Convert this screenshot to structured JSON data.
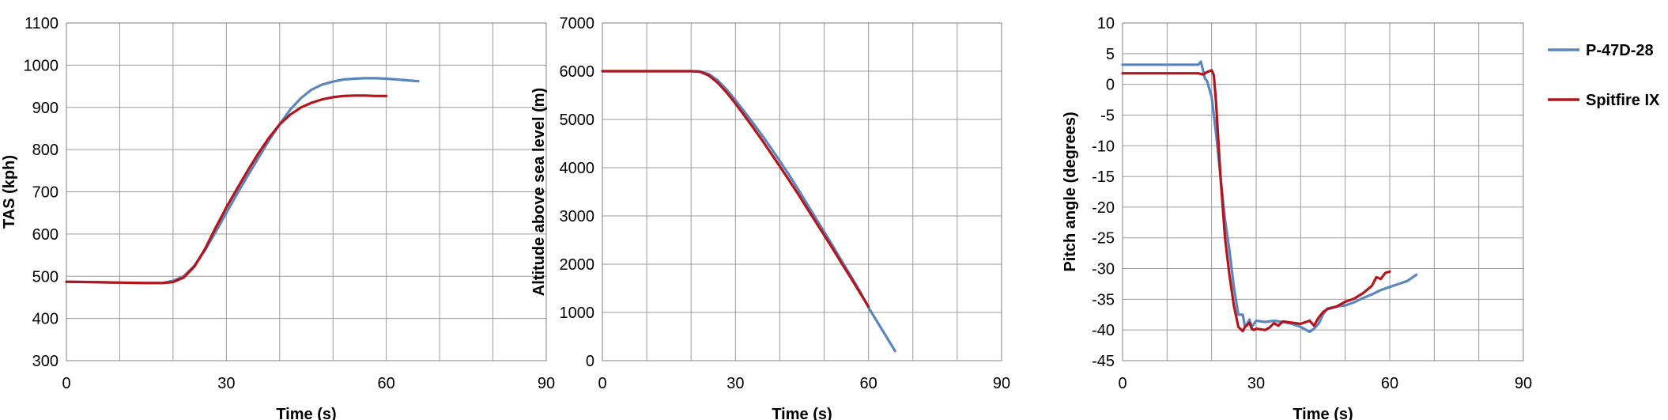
{
  "colors": {
    "p47": "#5b85bd",
    "spitfire": "#b3151c"
  },
  "legend": [
    {
      "label": "P-47D-28",
      "color": "#5b85bd"
    },
    {
      "label": "Spitfire IX",
      "color": "#b3151c"
    }
  ],
  "chart_data": [
    {
      "type": "line",
      "xlabel": "Time (s)",
      "ylabel": "TAS (kph)",
      "xlim": [
        0,
        90
      ],
      "ylim": [
        300,
        1100
      ],
      "xticks": [
        0,
        30,
        60,
        90
      ],
      "yticks": [
        300,
        400,
        500,
        600,
        700,
        800,
        900,
        1000,
        1100
      ],
      "xgrid_step": 10,
      "grid": true,
      "series": [
        {
          "name": "P-47D-28",
          "color": "#5b85bd",
          "x": [
            0,
            5,
            10,
            15,
            18,
            20,
            22,
            24,
            26,
            28,
            30,
            32,
            34,
            36,
            38,
            40,
            42,
            44,
            46,
            48,
            50,
            52,
            54,
            56,
            58,
            60,
            62,
            64,
            66
          ],
          "y": [
            487,
            486,
            485,
            484,
            484,
            489,
            500,
            525,
            562,
            605,
            650,
            695,
            738,
            780,
            822,
            860,
            895,
            922,
            942,
            954,
            961,
            966,
            968,
            969,
            969,
            968,
            966,
            964,
            962
          ]
        },
        {
          "name": "Spitfire IX",
          "color": "#b3151c",
          "x": [
            0,
            5,
            10,
            15,
            18,
            20,
            22,
            24,
            26,
            28,
            30,
            32,
            34,
            36,
            38,
            40,
            42,
            44,
            46,
            48,
            50,
            52,
            54,
            56,
            58,
            60
          ],
          "y": [
            487,
            486,
            485,
            484,
            484,
            486,
            497,
            523,
            565,
            615,
            663,
            707,
            750,
            791,
            828,
            860,
            883,
            900,
            911,
            919,
            924,
            927,
            928,
            928,
            927,
            927
          ]
        }
      ]
    },
    {
      "type": "line",
      "xlabel": "Time (s)",
      "ylabel": "Altitude above sea level (m)",
      "xlim": [
        0,
        90
      ],
      "ylim": [
        0,
        7000
      ],
      "xticks": [
        0,
        30,
        60,
        90
      ],
      "yticks": [
        0,
        1000,
        2000,
        3000,
        4000,
        5000,
        6000,
        7000
      ],
      "xgrid_step": 10,
      "grid": true,
      "series": [
        {
          "name": "P-47D-28",
          "color": "#5b85bd",
          "x": [
            0,
            10,
            20,
            22,
            24,
            26,
            28,
            30,
            32,
            34,
            36,
            38,
            40,
            42,
            44,
            46,
            48,
            50,
            52,
            54,
            56,
            58,
            60,
            62,
            64,
            66
          ],
          "y": [
            6000,
            6000,
            6000,
            5995,
            5940,
            5810,
            5620,
            5400,
            5160,
            4920,
            4670,
            4410,
            4140,
            3860,
            3570,
            3270,
            2970,
            2670,
            2370,
            2060,
            1760,
            1450,
            1100,
            800,
            500,
            200
          ]
        },
        {
          "name": "Spitfire IX",
          "color": "#b3151c",
          "x": [
            0,
            10,
            20,
            22,
            24,
            26,
            28,
            30,
            32,
            34,
            36,
            38,
            40,
            42,
            44,
            46,
            48,
            50,
            52,
            54,
            56,
            58,
            60
          ],
          "y": [
            6000,
            6000,
            6000,
            5990,
            5910,
            5760,
            5560,
            5330,
            5080,
            4830,
            4570,
            4300,
            4030,
            3750,
            3470,
            3180,
            2890,
            2600,
            2310,
            2010,
            1720,
            1420,
            1120
          ]
        }
      ]
    },
    {
      "type": "line",
      "xlabel": "Time (s)",
      "ylabel": "Pitch angle (degrees)",
      "xlim": [
        0,
        90
      ],
      "ylim": [
        -45,
        10
      ],
      "xticks": [
        0,
        30,
        60,
        90
      ],
      "yticks": [
        -45,
        -40,
        -35,
        -30,
        -25,
        -20,
        -15,
        -10,
        -5,
        0,
        5,
        10
      ],
      "xgrid_step": 10,
      "grid": true,
      "series": [
        {
          "name": "P-47D-28",
          "color": "#5b85bd",
          "x": [
            0,
            10,
            17,
            17.6,
            18,
            18.5,
            19,
            20,
            21,
            22,
            23,
            24,
            25,
            26,
            27,
            27.5,
            28,
            28.5,
            29,
            30,
            32,
            34,
            36,
            38,
            40,
            42,
            43,
            44,
            45,
            46,
            48,
            50,
            52,
            54,
            56,
            58,
            60,
            62,
            64,
            66
          ],
          "y": [
            3.2,
            3.2,
            3.2,
            3.7,
            2.5,
            1,
            0.5,
            -2,
            -8,
            -15,
            -22,
            -27,
            -33,
            -37.5,
            -37.5,
            -39.5,
            -39,
            -38.3,
            -39.5,
            -38.5,
            -38.7,
            -38.5,
            -38.7,
            -39,
            -39.5,
            -40.3,
            -39.8,
            -39,
            -37.5,
            -36.5,
            -36.2,
            -36,
            -35.5,
            -34.8,
            -34.2,
            -33.5,
            -33,
            -32.5,
            -32,
            -31
          ]
        },
        {
          "name": "Spitfire IX",
          "color": "#b3151c",
          "x": [
            0,
            10,
            17,
            18,
            19,
            20,
            20.5,
            21,
            22,
            23,
            24,
            25,
            26,
            27,
            27.5,
            28,
            28.5,
            29,
            29.5,
            30,
            32,
            33,
            34,
            35,
            36,
            38,
            40,
            42,
            43,
            44,
            45,
            46,
            48,
            50,
            52,
            54,
            56,
            57,
            58,
            59,
            60
          ],
          "y": [
            1.8,
            1.8,
            1.8,
            1.6,
            2.0,
            2.3,
            1.5,
            -3,
            -15,
            -25,
            -31,
            -36,
            -39.5,
            -40.2,
            -39.5,
            -39.2,
            -38.8,
            -39.8,
            -40,
            -39.8,
            -40,
            -39.6,
            -38.9,
            -39.3,
            -38.6,
            -38.8,
            -39,
            -38.5,
            -39.3,
            -38,
            -37.1,
            -36.6,
            -36.2,
            -35.4,
            -34.9,
            -34,
            -32.8,
            -31.4,
            -31.7,
            -30.7,
            -30.5
          ]
        }
      ]
    }
  ]
}
